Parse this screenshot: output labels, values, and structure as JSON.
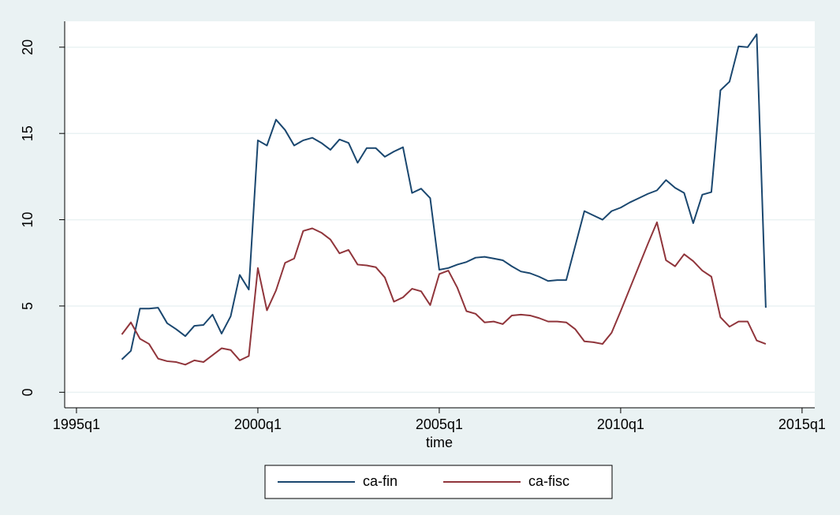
{
  "chart_data": {
    "type": "line",
    "x_label": "time",
    "x": [
      145,
      146,
      147,
      148,
      149,
      150,
      151,
      152,
      153,
      154,
      155,
      156,
      157,
      158,
      159,
      160,
      161,
      162,
      163,
      164,
      165,
      166,
      167,
      168,
      169,
      170,
      171,
      172,
      173,
      174,
      175,
      176,
      177,
      178,
      179,
      180,
      181,
      182,
      183,
      184,
      185,
      186,
      187,
      188,
      189,
      190,
      191,
      192,
      193,
      194,
      195,
      196,
      197,
      198,
      199,
      200,
      201,
      202,
      203,
      204,
      205,
      206,
      207,
      208,
      209,
      210,
      211,
      212,
      213,
      214,
      215,
      216
    ],
    "series": [
      {
        "name": "ca-fin",
        "color": "#1a476f",
        "values": [
          1.9,
          2.4,
          4.85,
          4.85,
          4.9,
          4.0,
          3.65,
          3.25,
          3.85,
          3.9,
          4.5,
          3.4,
          4.4,
          6.8,
          5.95,
          14.6,
          14.3,
          15.8,
          15.2,
          14.3,
          14.6,
          14.75,
          14.45,
          14.05,
          14.65,
          14.45,
          13.3,
          14.15,
          14.15,
          13.65,
          13.95,
          14.2,
          11.55,
          11.8,
          11.25,
          7.1,
          7.2,
          7.4,
          7.55,
          7.8,
          7.85,
          7.75,
          7.65,
          7.3,
          7.0,
          6.9,
          6.7,
          6.45,
          6.5,
          6.5,
          8.5,
          10.5,
          10.25,
          10.0,
          10.5,
          10.7,
          11.0,
          11.25,
          11.5,
          11.7,
          12.3,
          11.85,
          11.55,
          9.8,
          11.45,
          11.6,
          17.5,
          18.0,
          20.05,
          20.0,
          20.75,
          4.9
        ]
      },
      {
        "name": "ca-fisc",
        "color": "#90353b",
        "values": [
          3.35,
          4.05,
          3.1,
          2.8,
          1.95,
          1.8,
          1.75,
          1.6,
          1.85,
          1.75,
          2.15,
          2.55,
          2.45,
          1.85,
          2.1,
          7.2,
          4.75,
          5.9,
          7.5,
          7.75,
          9.35,
          9.5,
          9.25,
          8.85,
          8.05,
          8.25,
          7.4,
          7.35,
          7.25,
          6.65,
          5.25,
          5.5,
          6.0,
          5.85,
          5.05,
          6.85,
          7.05,
          6.05,
          4.7,
          4.55,
          4.05,
          4.1,
          3.95,
          4.45,
          4.5,
          4.45,
          4.3,
          4.1,
          4.1,
          4.05,
          3.65,
          2.95,
          2.9,
          2.8,
          3.45,
          4.7,
          6.0,
          7.3,
          8.6,
          9.85,
          7.65,
          7.3,
          8.0,
          7.6,
          7.05,
          6.7,
          4.35,
          3.8,
          4.1,
          4.1,
          3.0,
          2.8
        ]
      }
    ],
    "xlim": [
      138.7,
      221.4
    ],
    "xticks": [
      {
        "value": 140,
        "label": "1995q1"
      },
      {
        "value": 160,
        "label": "2000q1"
      },
      {
        "value": 180,
        "label": "2005q1"
      },
      {
        "value": 200,
        "label": "2010q1"
      },
      {
        "value": 220,
        "label": "2015q1"
      }
    ],
    "ylim": [
      -0.9,
      21.5
    ],
    "yticks": [
      0,
      5,
      10,
      15,
      20
    ],
    "grid": true,
    "legend": "bottom"
  }
}
